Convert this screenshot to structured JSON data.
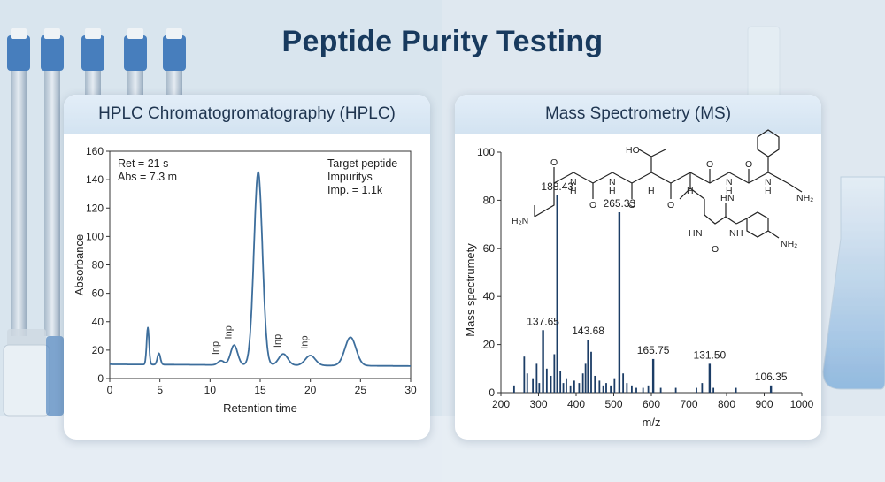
{
  "page": {
    "title": "Peptide Purity Testing"
  },
  "hplc": {
    "header": "HPLC Chromatogromatography (HPLC)",
    "annotations": {
      "ret": "Ret = 21 s",
      "abs": "Abs = 7.3 m",
      "target": "Target peptide",
      "impurities": "Impuritys",
      "imp": "Imp. = 1.1k"
    }
  },
  "ms": {
    "header": "Mass Spectrometry (MS)",
    "molecule_labels": [
      "HO",
      "O",
      "O",
      "O",
      "O",
      "O",
      "O",
      "N",
      "N",
      "H",
      "H",
      "H",
      "H",
      "H",
      "H",
      "N",
      "N",
      "H₂N",
      "NH₂",
      "N",
      "H",
      "H",
      "N",
      "H",
      "N",
      "O",
      "NH₂"
    ]
  },
  "chart_data": [
    {
      "type": "line",
      "title": "",
      "xlabel": "Retention time",
      "ylabel": "Absorbance",
      "xlim": [
        0,
        30
      ],
      "ylim": [
        0,
        160
      ],
      "xticks": [
        0,
        5,
        10,
        15,
        20,
        25,
        30
      ],
      "yticks": [
        0,
        20,
        40,
        60,
        80,
        100,
        120,
        140,
        160
      ],
      "color": "#3d6e9c",
      "baseline": 10,
      "peaks": [
        {
          "x": 3.8,
          "height": 36,
          "width": 0.12
        },
        {
          "x": 4.9,
          "height": 18,
          "width": 0.15
        },
        {
          "x": 11.1,
          "height": 13,
          "width": 0.3,
          "label": "Inp"
        },
        {
          "x": 12.4,
          "height": 24,
          "width": 0.35,
          "label": "Inp"
        },
        {
          "x": 14.8,
          "height": 146,
          "width": 0.42
        },
        {
          "x": 17.3,
          "height": 18,
          "width": 0.45,
          "label": "Inp"
        },
        {
          "x": 20.0,
          "height": 17,
          "width": 0.5,
          "label": "Inp"
        },
        {
          "x": 24.0,
          "height": 30,
          "width": 0.55
        }
      ],
      "grid": false
    },
    {
      "type": "bar",
      "title": "",
      "xlabel": "m/z",
      "ylabel": "Mass spectrumety",
      "xlim": [
        200,
        1000
      ],
      "ylim": [
        0,
        100
      ],
      "xticks": [
        200,
        300,
        400,
        500,
        600,
        700,
        800,
        900,
        1000
      ],
      "yticks": [
        0,
        20,
        40,
        60,
        80,
        100
      ],
      "color": "#1c3d66",
      "peaks": [
        {
          "x": 350,
          "y": 82,
          "label": "188.43"
        },
        {
          "x": 515,
          "y": 75,
          "label": "265.33"
        },
        {
          "x": 312,
          "y": 26,
          "label": "137.65"
        },
        {
          "x": 432,
          "y": 22,
          "label": "143.68"
        },
        {
          "x": 605,
          "y": 14,
          "label": "165.75"
        },
        {
          "x": 755,
          "y": 12,
          "label": "131.50"
        },
        {
          "x": 918,
          "y": 3,
          "label": "106.35"
        },
        {
          "x": 235,
          "y": 3
        },
        {
          "x": 262,
          "y": 15
        },
        {
          "x": 270,
          "y": 8
        },
        {
          "x": 285,
          "y": 6
        },
        {
          "x": 295,
          "y": 12
        },
        {
          "x": 302,
          "y": 4
        },
        {
          "x": 322,
          "y": 10
        },
        {
          "x": 333,
          "y": 7
        },
        {
          "x": 342,
          "y": 16
        },
        {
          "x": 358,
          "y": 9
        },
        {
          "x": 366,
          "y": 4
        },
        {
          "x": 374,
          "y": 6
        },
        {
          "x": 385,
          "y": 3
        },
        {
          "x": 395,
          "y": 5
        },
        {
          "x": 408,
          "y": 4
        },
        {
          "x": 418,
          "y": 8
        },
        {
          "x": 425,
          "y": 12
        },
        {
          "x": 440,
          "y": 17
        },
        {
          "x": 450,
          "y": 7
        },
        {
          "x": 462,
          "y": 5
        },
        {
          "x": 472,
          "y": 3
        },
        {
          "x": 480,
          "y": 4
        },
        {
          "x": 492,
          "y": 3
        },
        {
          "x": 502,
          "y": 6
        },
        {
          "x": 525,
          "y": 8
        },
        {
          "x": 535,
          "y": 4
        },
        {
          "x": 548,
          "y": 3
        },
        {
          "x": 560,
          "y": 2
        },
        {
          "x": 578,
          "y": 2
        },
        {
          "x": 592,
          "y": 3
        },
        {
          "x": 625,
          "y": 2
        },
        {
          "x": 665,
          "y": 2
        },
        {
          "x": 720,
          "y": 2
        },
        {
          "x": 735,
          "y": 4
        },
        {
          "x": 765,
          "y": 2
        },
        {
          "x": 825,
          "y": 2
        }
      ],
      "grid": false
    }
  ]
}
